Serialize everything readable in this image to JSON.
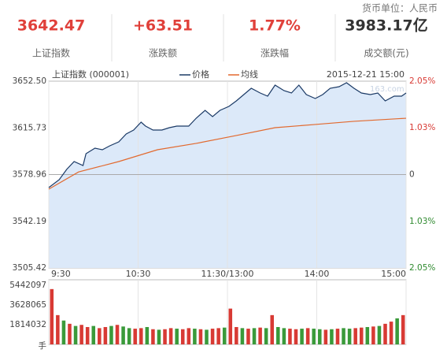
{
  "header": {
    "currency_unit": "货币单位：人民币",
    "stats": [
      {
        "value": "3642.47",
        "label": "上证指数",
        "color": "#e0403a"
      },
      {
        "value": "+63.51",
        "label": "涨跌额",
        "color": "#e0403a"
      },
      {
        "value": "1.77%",
        "label": "涨跌幅",
        "color": "#e0403a"
      },
      {
        "value": "3983.17亿",
        "label": "成交额(元)",
        "color": "#333333"
      }
    ]
  },
  "chart_data": [
    {
      "type": "line",
      "title": "上证指数 (000001)",
      "timestamp": "2015-12-21 15:00",
      "watermark": "163.com",
      "area_color": "#dce9f9",
      "reference_line": 3578.96,
      "series": [
        {
          "name": "价格",
          "color": "#1b3a66",
          "fill": true,
          "x": [
            0,
            7,
            12,
            17,
            23,
            25,
            31,
            36,
            41,
            47,
            52,
            57,
            62,
            65,
            70,
            76,
            81,
            86,
            94,
            99,
            105,
            110,
            115,
            121,
            126,
            131,
            136,
            142,
            147,
            152,
            158,
            163,
            168,
            173,
            179,
            184,
            189,
            195,
            200,
            205,
            210,
            216,
            221,
            226,
            232,
            237,
            240
          ],
          "values": [
            3568.72,
            3574.92,
            3582.99,
            3589.2,
            3586.1,
            3595.4,
            3599.75,
            3598.51,
            3601.61,
            3604.71,
            3610.92,
            3614.02,
            3620.23,
            3617.13,
            3614.02,
            3614.02,
            3615.88,
            3617.13,
            3617.13,
            3623.33,
            3629.54,
            3624.57,
            3629.54,
            3632.64,
            3636.98,
            3641.95,
            3646.91,
            3643.19,
            3640.71,
            3649.4,
            3645.05,
            3643.19,
            3649.4,
            3641.95,
            3638.85,
            3641.95,
            3646.91,
            3648.16,
            3651.26,
            3646.91,
            3643.19,
            3641.95,
            3643.19,
            3636.98,
            3640.71,
            3640.71,
            3643.19
          ]
        },
        {
          "name": "均线",
          "color": "#e2692e",
          "x": [
            0,
            20,
            47,
            73,
            99,
            126,
            152,
            179,
            205,
            240
          ],
          "values": [
            3567.5,
            3581.0,
            3589.2,
            3598.5,
            3603.5,
            3609.7,
            3615.9,
            3618.4,
            3620.9,
            3623.3
          ]
        }
      ],
      "xlim": [
        0,
        240
      ],
      "xticks": [
        {
          "value": 0,
          "label": "9:30"
        },
        {
          "value": 60,
          "label": "10:30"
        },
        {
          "value": 120,
          "label": "11:30/13:00"
        },
        {
          "value": 180,
          "label": "14:00"
        },
        {
          "value": 240,
          "label": "15:00"
        }
      ],
      "ylim": [
        3505.42,
        3652.5
      ],
      "yticks": [
        {
          "value": 3505.42,
          "label": "3505.42"
        },
        3542.19,
        3578.96,
        3615.73,
        {
          "value": 3652.5,
          "label": "3652.50"
        }
      ],
      "y2lim": [
        -2.05,
        2.05
      ],
      "y2ticks": [
        {
          "value": -2.05,
          "label": "2.05%"
        },
        {
          "value": -1.03,
          "label": "1.03%"
        },
        0,
        {
          "value": 1.03,
          "label": "1.03%"
        },
        {
          "value": 2.05,
          "label": "2.05%"
        }
      ]
    },
    {
      "type": "bar",
      "unit": "手",
      "values": [
        5100000,
        2700000,
        2200000,
        1900000,
        1700000,
        1800000,
        1600000,
        1700000,
        1500000,
        1600000,
        1700000,
        1800000,
        1650000,
        1500000,
        1450000,
        1500000,
        1600000,
        1400000,
        1350000,
        1400000,
        1500000,
        1450000,
        1400000,
        1500000,
        1450000,
        1400000,
        1350000,
        1450000,
        1500000,
        1550000,
        3300000,
        1600000,
        1500000,
        1450000,
        1500000,
        1550000,
        1500000,
        2700000,
        1600000,
        1500000,
        1450000,
        1400000,
        1450000,
        1500000,
        1450000,
        1400000,
        1350000,
        1400000,
        1450000,
        1500000,
        1450000,
        1500000,
        1550000,
        1600000,
        1650000,
        1700000,
        1900000,
        2100000,
        2400000,
        2700000
      ],
      "colors": [
        "#d83a34",
        "#d83a34",
        "#3a9a3a",
        "#d83a34",
        "#3a9a3a",
        "#d83a34",
        "#d83a34",
        "#3a9a3a",
        "#d83a34",
        "#d83a34",
        "#3a9a3a",
        "#d83a34",
        "#3a9a3a",
        "#3a9a3a",
        "#d83a34",
        "#d83a34",
        "#3a9a3a",
        "#d83a34",
        "#3a9a3a",
        "#d83a34",
        "#d83a34",
        "#3a9a3a",
        "#d83a34",
        "#d83a34",
        "#3a9a3a",
        "#d83a34",
        "#3a9a3a",
        "#d83a34",
        "#d83a34",
        "#3a9a3a",
        "#d83a34",
        "#d83a34",
        "#3a9a3a",
        "#d83a34",
        "#3a9a3a",
        "#d83a34",
        "#3a9a3a",
        "#d83a34",
        "#3a9a3a",
        "#3a9a3a",
        "#d83a34",
        "#d83a34",
        "#3a9a3a",
        "#d83a34",
        "#3a9a3a",
        "#3a9a3a",
        "#d83a34",
        "#3a9a3a",
        "#d83a34",
        "#3a9a3a",
        "#3a9a3a",
        "#d83a34",
        "#d83a34",
        "#3a9a3a",
        "#d83a34",
        "#3a9a3a",
        "#d83a34",
        "#d83a34",
        "#3a9a3a",
        "#d83a34"
      ],
      "ylim": [
        0,
        5960000
      ],
      "yticks": [
        1814032,
        3628065,
        5442097
      ]
    }
  ]
}
